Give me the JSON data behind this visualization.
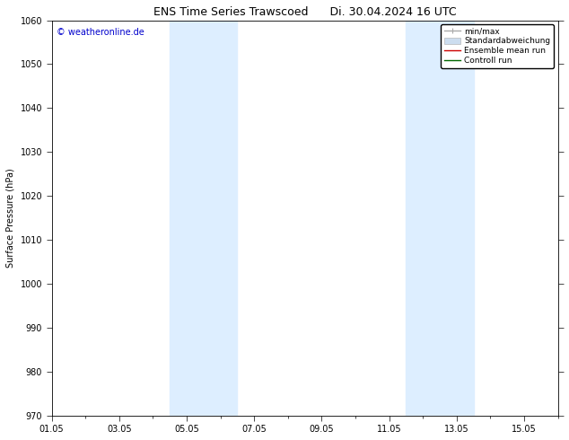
{
  "title_left": "ENS Time Series Trawscoed",
  "title_right": "Di. 30.04.2024 16 UTC",
  "ylabel": "Surface Pressure (hPa)",
  "ylim": [
    970,
    1060
  ],
  "yticks": [
    970,
    980,
    990,
    1000,
    1010,
    1020,
    1030,
    1040,
    1050,
    1060
  ],
  "xlim": [
    0,
    15
  ],
  "xtick_labels": [
    "01.05",
    "03.05",
    "05.05",
    "07.05",
    "09.05",
    "11.05",
    "13.05",
    "15.05"
  ],
  "xtick_positions": [
    0,
    2,
    4,
    6,
    8,
    10,
    12,
    14
  ],
  "shaded_regions": [
    {
      "x_start": 3.5,
      "x_end": 5.5,
      "color": "#ddeeff"
    },
    {
      "x_start": 10.5,
      "x_end": 12.5,
      "color": "#ddeeff"
    }
  ],
  "copyright_text": "© weatheronline.de",
  "copyright_color": "#0000cc",
  "legend_items": [
    {
      "label": "min/max",
      "color": "#aaaaaa",
      "lw": 1.0,
      "style": "line_with_caps"
    },
    {
      "label": "Standardabweichung",
      "color": "#ccddef",
      "lw": 6,
      "style": "band"
    },
    {
      "label": "Ensemble mean run",
      "color": "#cc0000",
      "lw": 1.0,
      "style": "line"
    },
    {
      "label": "Controll run",
      "color": "#006600",
      "lw": 1.0,
      "style": "line"
    }
  ],
  "background_color": "#ffffff",
  "plot_bg_color": "#ffffff",
  "grid_color": "#dddddd",
  "tick_color": "#000000",
  "spine_color": "#000000",
  "title_fontsize": 9,
  "label_fontsize": 7,
  "tick_fontsize": 7,
  "legend_fontsize": 6.5,
  "copyright_fontsize": 7
}
